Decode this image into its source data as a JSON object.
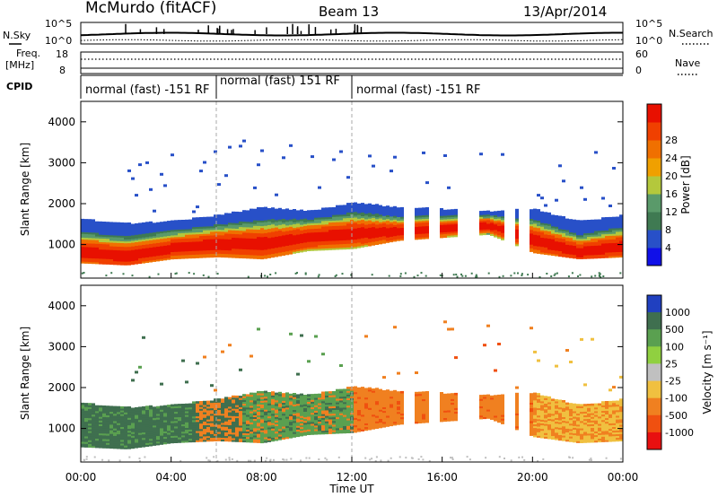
{
  "header": {
    "station": "McMurdo (fitACF)",
    "beam": "Beam 13",
    "date": "13/Apr/2014"
  },
  "noise_panel": {
    "left_label": "N.Sky",
    "right_label": "N.Search",
    "left_ticks": [
      "10^5",
      "10^0"
    ],
    "right_ticks": [
      "10^5",
      "10^0"
    ]
  },
  "freq_panel": {
    "left_label_1": "Freq.",
    "left_label_2": "[MHz]",
    "right_label": "Nave",
    "left_ticks": [
      "18",
      "8"
    ],
    "right_ticks": [
      "60",
      "0"
    ]
  },
  "cpid_panel": {
    "label": "CPID",
    "segments": [
      {
        "label": "normal (fast) -151 RF",
        "start_hour": 0,
        "end_hour": 6
      },
      {
        "label": "normal (fast) 151 RF",
        "start_hour": 6,
        "end_hour": 12
      },
      {
        "label": "normal (fast) -151 RF",
        "start_hour": 12,
        "end_hour": 24
      }
    ]
  },
  "panels": {
    "ylabel": "Slant Range [km]",
    "yticks": [
      "1000",
      "2000",
      "3000",
      "4000"
    ],
    "xticks": [
      "00:00",
      "04:00",
      "08:00",
      "12:00",
      "16:00",
      "20:00",
      "00:00"
    ],
    "xlabel": "Time UT"
  },
  "power_scale": {
    "title": "Power [dB]",
    "ticks": [
      "4",
      "8",
      "12",
      "16",
      "20",
      "24",
      "28"
    ],
    "colors": [
      "#1010e8",
      "#2850c8",
      "#3f7a52",
      "#5a9a6a",
      "#b4c83c",
      "#f0a000",
      "#f07000",
      "#f04000",
      "#e81000"
    ]
  },
  "velocity_scale": {
    "title": "Velocity [m s⁻¹]",
    "ticks": [
      "1000",
      "500",
      "100",
      "25",
      "-25",
      "-100",
      "-500",
      "-1000"
    ],
    "colors": [
      "#2040c0",
      "#3f6f4f",
      "#5aa050",
      "#90d040",
      "#c0c0c0",
      "#f0c040",
      "#f08020",
      "#f05010",
      "#e81010"
    ]
  },
  "chart_data": {
    "type": "heatmap",
    "x_range_hours": [
      0,
      24
    ],
    "y_range_km": [
      180,
      4500
    ],
    "xlabel": "Time UT",
    "ylabel": "Slant Range [km]",
    "scatter_band": [
      {
        "t": 0,
        "lo": 550,
        "hi": 1600,
        "core": 800
      },
      {
        "t": 2,
        "lo": 500,
        "hi": 1500,
        "core": 700
      },
      {
        "t": 4,
        "lo": 650,
        "hi": 1550,
        "core": 900
      },
      {
        "t": 6,
        "lo": 700,
        "hi": 1700,
        "core": 1000
      },
      {
        "t": 8,
        "lo": 650,
        "hi": 1900,
        "core": 1000
      },
      {
        "t": 10,
        "lo": 850,
        "hi": 1800,
        "core": 1150
      },
      {
        "t": 12,
        "lo": 900,
        "hi": 2000,
        "core": 1250
      },
      {
        "t": 14,
        "lo": 1100,
        "hi": 1900,
        "core": 1300
      },
      {
        "t": 18,
        "lo": 1250,
        "hi": 1800,
        "core": 1450
      },
      {
        "t": 20,
        "lo": 800,
        "hi": 1850,
        "core": 1100
      },
      {
        "t": 22,
        "lo": 650,
        "hi": 1550,
        "core": 800
      },
      {
        "t": 24,
        "lo": 700,
        "hi": 1700,
        "core": 950
      }
    ]
  }
}
